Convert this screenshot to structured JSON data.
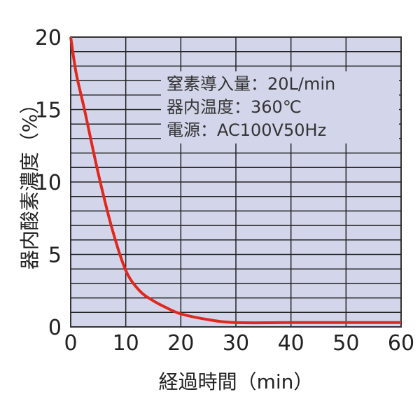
{
  "chart_data": {
    "type": "line",
    "xlabel": "経過時間（min）",
    "ylabel": "器内酸素濃度（%）",
    "xlim": [
      0,
      60
    ],
    "ylim": [
      0,
      20
    ],
    "xticks": [
      "0",
      "10",
      "20",
      "30",
      "40",
      "50",
      "60"
    ],
    "yticks": [
      "0",
      "5",
      "10",
      "15",
      "20"
    ],
    "grid": true,
    "background_color": "#d3d6ea",
    "line_color": "#e0281e",
    "annotation": [
      "窒素導入量：20L/min",
      "器内温度：360℃",
      "電源：AC100V50Hz"
    ],
    "series": [
      {
        "x": [
          0,
          1,
          2.5,
          5,
          7.5,
          10,
          12.5,
          15,
          17.5,
          20,
          25,
          30,
          40,
          50,
          60
        ],
        "y": [
          20,
          17.5,
          15,
          10.6,
          6.8,
          3.9,
          2.5,
          1.8,
          1.3,
          0.9,
          0.5,
          0.3,
          0.3,
          0.3,
          0.3
        ]
      }
    ]
  }
}
